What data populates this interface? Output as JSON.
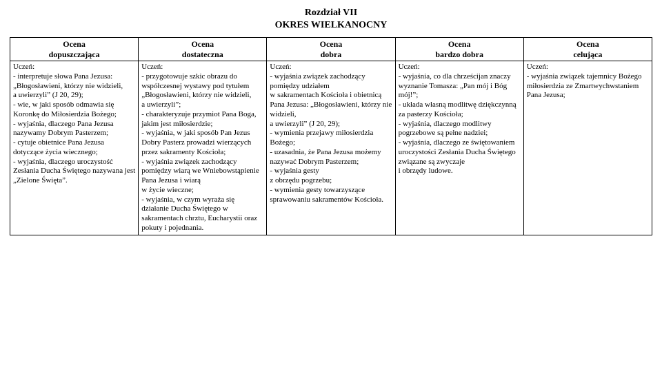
{
  "title_lines": [
    "Rozdział VII",
    "OKRES WIELKANOCNY"
  ],
  "colors": {
    "text": "#000000",
    "background": "#ffffff",
    "border": "#000000"
  },
  "font": {
    "family": "Times New Roman",
    "header_size_pt": 12,
    "body_size_pt": 11,
    "title_size_pt": 14
  },
  "columns": [
    {
      "key": "col1",
      "header_line1": "Ocena",
      "header_line2": "dopuszczająca"
    },
    {
      "key": "col2",
      "header_line1": "Ocena",
      "header_line2": "dostateczna"
    },
    {
      "key": "col3",
      "header_line1": "Ocena",
      "header_line2": "dobra"
    },
    {
      "key": "col4",
      "header_line1": "Ocena",
      "header_line2": "bardzo dobra"
    },
    {
      "key": "col5",
      "header_line1": "Ocena",
      "header_line2": "celująca"
    }
  ],
  "cells": {
    "col1": "Uczeń:\n- interpretuje słowa Pana Jezusa: „Błogosławieni, którzy nie widzieli,\na uwierzyli” (J 20, 29);\n- wie, w jaki sposób odmawia się Koronkę do Miłosierdzia Bożego;\n- wyjaśnia, dlaczego Pana Jezusa nazywamy Dobrym Pasterzem;\n- cytuje obietnice Pana Jezusa dotyczące życia wiecznego;\n- wyjaśnia, dlaczego uroczystość Zesłania Ducha Świętego nazywana jest „Zielone Święta”.",
    "col2": "Uczeń:\n- przygotowuje szkic obrazu do współczesnej wystawy pod tytułem „Błogosławieni, którzy nie widzieli,\na uwierzyli”;\n- charakteryzuje przymiot Pana Boga, jakim jest miłosierdzie;\n- wyjaśnia, w jaki sposób Pan Jezus Dobry Pasterz prowadzi wierzących przez sakramenty Kościoła;\n- wyjaśnia związek zachodzący pomiędzy wiarą we Wniebowstąpienie Pana Jezusa i wiarą\nw życie wieczne;\n- wyjaśnia, w czym wyraża się działanie Ducha Świętego w sakramentach chrztu, Eucharystii oraz pokuty i pojednania.",
    "col3": "Uczeń:\n- wyjaśnia związek zachodzący pomiędzy udziałem\nw sakramentach Kościoła i obietnicą Pana Jezusa: „Błogosławieni, którzy nie widzieli,\na uwierzyli” (J 20, 29);\n- wymienia przejawy miłosierdzia Bożego;\n- uzasadnia, że Pana Jezusa możemy nazywać Dobrym Pasterzem;\n- wyjaśnia gesty\nz obrzędu pogrzebu;\n- wymienia gesty towarzyszące sprawowaniu sakramentów Kościoła.",
    "col4": "Uczeń:\n- wyjaśnia, co dla chrześcijan znaczy wyznanie Tomasza: „Pan mój i Bóg mój!”;\n- układa własną modlitwę dziękczynną za pasterzy Kościoła;\n- wyjaśnia, dlaczego modlitwy pogrzebowe są pełne nadziei;\n- wyjaśnia, dlaczego ze świętowaniem uroczystości Zesłania Ducha Świętego związane są zwyczaje\ni obrzędy ludowe.",
    "col5": "Uczeń:\n- wyjaśnia związek tajemnicy Bożego miłosierdzia ze Zmartwychwstaniem Pana Jezusa;"
  }
}
